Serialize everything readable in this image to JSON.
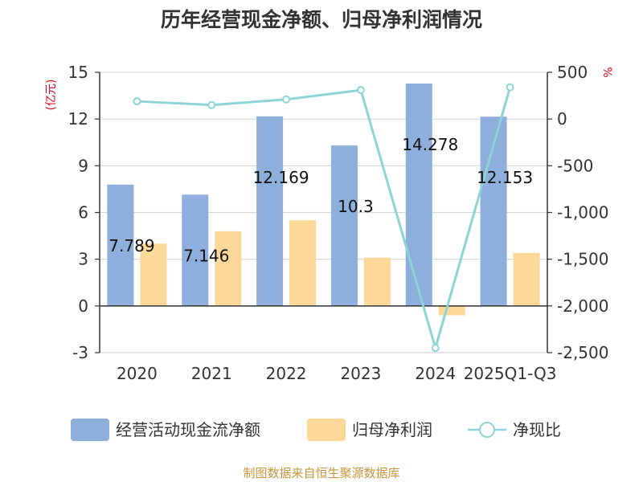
{
  "chart_data": {
    "type": "bar",
    "title": "历年经营现金净额、归母净利润情况",
    "categories": [
      "2020",
      "2021",
      "2022",
      "2023",
      "2024",
      "2025Q1-Q3"
    ],
    "left_axis": {
      "unit": "(亿元)",
      "ylim": [
        -3,
        15
      ],
      "ticks": [
        "15",
        "12",
        "9",
        "6",
        "3",
        "0",
        "-3"
      ]
    },
    "right_axis": {
      "unit": "%",
      "ylim": [
        -2500,
        500
      ],
      "ticks": [
        "500",
        "0",
        "-500",
        "-1,000",
        "-1,500",
        "-2,000",
        "-2,500"
      ]
    },
    "series": [
      {
        "name": "经营活动现金流净额",
        "kind": "bar",
        "axis": "left",
        "color": "#8eaedb",
        "values": [
          7.789,
          7.146,
          12.169,
          10.3,
          14.278,
          12.153
        ],
        "labels": [
          "7.789",
          "7.146",
          "12.169",
          "10.3",
          "14.278",
          "12.153"
        ]
      },
      {
        "name": "归母净利润",
        "kind": "bar",
        "axis": "left",
        "color": "#fed898",
        "values": [
          4.0,
          4.8,
          5.5,
          3.1,
          -0.6,
          3.4
        ]
      },
      {
        "name": "净现比",
        "kind": "line",
        "axis": "right",
        "color": "#8ed4d6",
        "values": [
          190,
          150,
          210,
          310,
          -2450,
          340
        ]
      }
    ],
    "grid": true,
    "legend": "bottom"
  },
  "source": "制图数据来自恒生聚源数据库"
}
